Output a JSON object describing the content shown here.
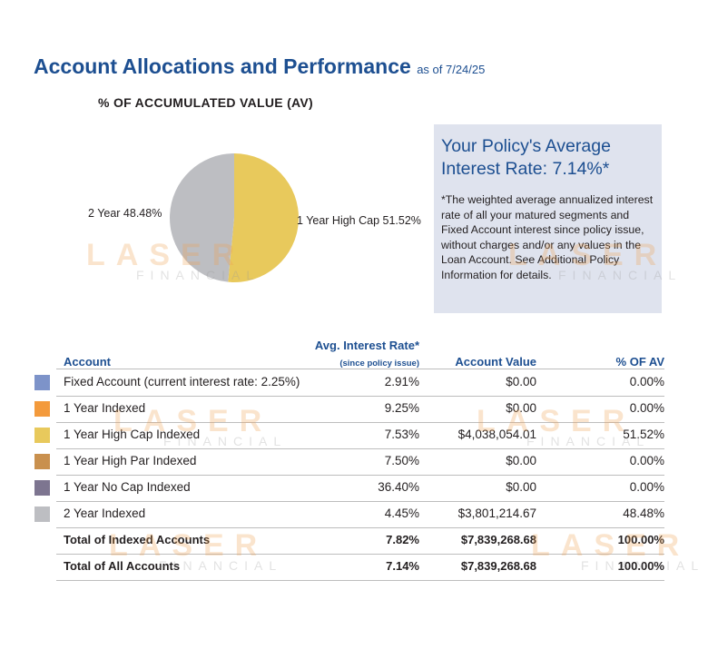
{
  "header": {
    "title": "Account Allocations and Performance",
    "as_of": "as of 7/24/25",
    "subtitle": "% OF ACCUMULATED VALUE (AV)"
  },
  "pie": {
    "type": "pie",
    "slices": [
      {
        "label": "1 Year High Cap 51.52%",
        "value": 51.52,
        "color": "#e8c95c"
      },
      {
        "label": "2 Year 48.48%",
        "value": 48.48,
        "color": "#bdbec2"
      }
    ]
  },
  "info": {
    "heading": "Your Policy's Average Interest Rate: 7.14%*",
    "body": "*The weighted average annualized interest rate of all your matured segments and Fixed Account interest since policy issue, without charges and/or any values in the Loan Account. See Additional Policy Information for details."
  },
  "table": {
    "headers": {
      "account": "Account",
      "rate": "Avg. Interest Rate*",
      "rate_sub": "(since policy issue)",
      "value": "Account Value",
      "pct": "% OF AV"
    },
    "rows": [
      {
        "account": "Fixed Account (current interest rate: 2.25%)",
        "rate": "2.91%",
        "value": "$0.00",
        "pct": "0.00%",
        "color": "#7d93c9"
      },
      {
        "account": "1 Year Indexed",
        "rate": "9.25%",
        "value": "$0.00",
        "pct": "0.00%",
        "color": "#f39a3c"
      },
      {
        "account": "1 Year High Cap Indexed",
        "rate": "7.53%",
        "value": "$4,038,054.01",
        "pct": "51.52%",
        "color": "#e8c95c"
      },
      {
        "account": "1 Year High Par Indexed",
        "rate": "7.50%",
        "value": "$0.00",
        "pct": "0.00%",
        "color": "#c9904e"
      },
      {
        "account": "1 Year No Cap Indexed",
        "rate": "36.40%",
        "value": "$0.00",
        "pct": "0.00%",
        "color": "#7d7590"
      },
      {
        "account": "2 Year Indexed",
        "rate": "4.45%",
        "value": "$3,801,214.67",
        "pct": "48.48%",
        "color": "#bdbec2"
      }
    ],
    "totals": [
      {
        "account": "Total of Indexed Accounts",
        "rate": "7.82%",
        "value": "$7,839,268.68",
        "pct": "100.00%"
      },
      {
        "account": "Total of All Accounts",
        "rate": "7.14%",
        "value": "$7,839,268.68",
        "pct": "100.00%"
      }
    ]
  },
  "watermark": {
    "line1": "LASER",
    "line2": "FINANCIAL"
  }
}
